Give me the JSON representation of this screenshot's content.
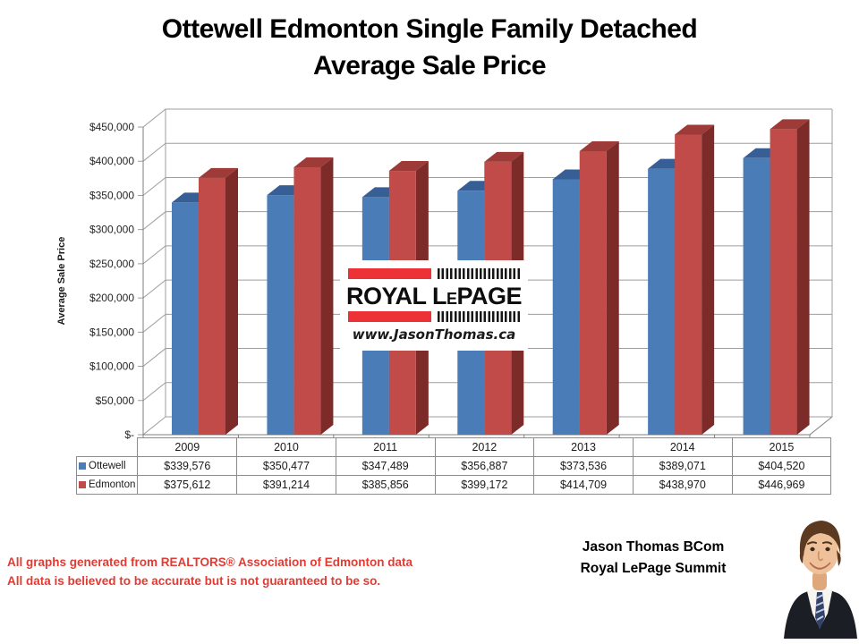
{
  "title": {
    "line1": "Ottewell Edmonton Single Family Detached",
    "line2": "Average Sale Price"
  },
  "chart_data": {
    "type": "bar",
    "variant": "3d-clustered-column",
    "title": "Ottewell Edmonton Single Family Detached Average Sale Price",
    "categories": [
      "2009",
      "2010",
      "2011",
      "2012",
      "2013",
      "2014",
      "2015"
    ],
    "series": [
      {
        "name": "Ottewell",
        "color": "#4a7cb8",
        "color_top": "#385f95",
        "color_side": "#2d4d79",
        "values": [
          339576,
          350477,
          347489,
          356887,
          373536,
          389071,
          404520
        ]
      },
      {
        "name": "Edmonton",
        "color": "#c04b48",
        "color_top": "#9e3b38",
        "color_side": "#7c2b29",
        "values": [
          375612,
          391214,
          385856,
          399172,
          414709,
          438970,
          446969
        ]
      }
    ],
    "ylabel": "Average Sale Price",
    "ylim": [
      0,
      450000
    ],
    "ytick_step": 50000,
    "ytick_labels": [
      "$-",
      "$50,000",
      "$100,000",
      "$150,000",
      "$200,000",
      "$250,000",
      "$300,000",
      "$350,000",
      "$400,000",
      "$450,000"
    ],
    "grid": true,
    "legend_position": "table-left",
    "value_prefix": "$"
  },
  "logo": {
    "brand_part1": "ROYAL L",
    "brand_small": "E",
    "brand_part2": "PAGE",
    "website": "www.JasonThomas.ca",
    "red": "#ed3237",
    "stripe_color": "#161616"
  },
  "footer": {
    "disclaimer_line1": "All graphs generated from REALTORS® Association of Edmonton data",
    "disclaimer_line2": "All data is believed to be accurate but is not guaranteed to be so.",
    "disclaimer_color": "#e23b33",
    "agent_name": "Jason Thomas BCom",
    "agent_company": "Royal LePage Summit"
  }
}
